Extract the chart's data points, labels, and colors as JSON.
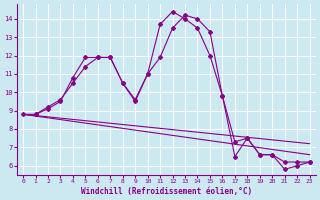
{
  "xlabel": "Windchill (Refroidissement éolien,°C)",
  "background_color": "#cce8f0",
  "line_color": "#880088",
  "xlim": [
    -0.5,
    23.5
  ],
  "ylim": [
    5.5,
    14.8
  ],
  "yticks": [
    6,
    7,
    8,
    9,
    10,
    11,
    12,
    13,
    14
  ],
  "xticks": [
    0,
    1,
    2,
    3,
    4,
    5,
    6,
    7,
    8,
    9,
    10,
    11,
    12,
    13,
    14,
    15,
    16,
    17,
    18,
    19,
    20,
    21,
    22,
    23
  ],
  "lines": [
    {
      "x": [
        0,
        1,
        2,
        3,
        4,
        5,
        6,
        7,
        8,
        9,
        10,
        11,
        12,
        13,
        14,
        15,
        16,
        17,
        18,
        19,
        20,
        21,
        22,
        23
      ],
      "y": [
        8.8,
        8.8,
        9.2,
        9.6,
        10.5,
        11.4,
        11.9,
        11.9,
        10.5,
        9.5,
        11.0,
        13.7,
        14.4,
        14.0,
        13.5,
        12.0,
        9.8,
        6.5,
        7.5,
        6.6,
        6.6,
        5.8,
        6.0,
        6.2
      ],
      "has_markers": true
    },
    {
      "x": [
        1,
        2,
        3,
        4,
        5,
        6,
        7,
        8,
        9,
        10,
        11,
        12,
        13,
        14,
        15,
        16,
        17,
        18,
        19,
        20,
        21,
        22,
        23
      ],
      "y": [
        8.8,
        9.1,
        9.5,
        10.8,
        11.9,
        11.9,
        11.9,
        10.5,
        9.6,
        11.0,
        11.9,
        13.5,
        14.2,
        14.0,
        13.3,
        9.8,
        7.3,
        7.5,
        6.6,
        6.6,
        6.2,
        6.2,
        6.2
      ],
      "has_markers": true
    },
    {
      "x": [
        0,
        23
      ],
      "y": [
        8.8,
        7.2
      ],
      "has_markers": false
    },
    {
      "x": [
        0,
        23
      ],
      "y": [
        8.8,
        6.6
      ],
      "has_markers": false
    }
  ]
}
